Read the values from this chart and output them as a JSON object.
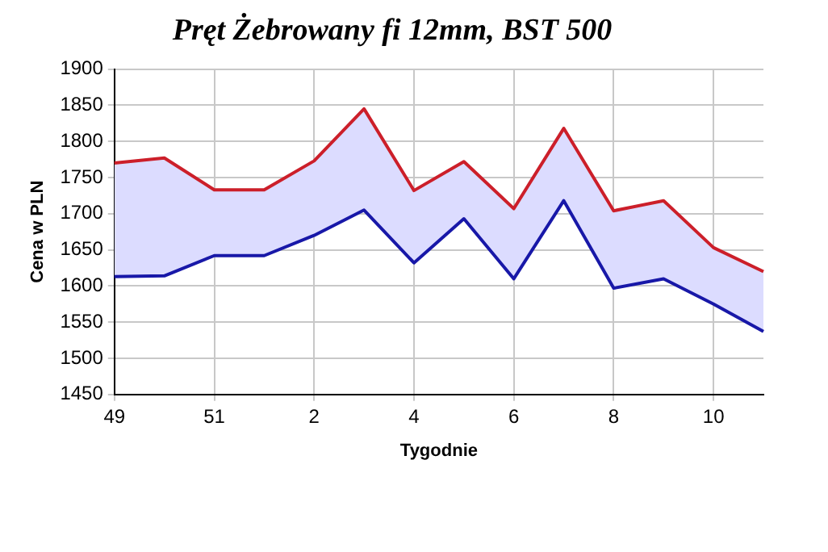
{
  "chart_data": {
    "type": "line",
    "title": "Pręt Żebrowany fi 12mm, BST 500",
    "xlabel": "Tygodnie",
    "ylabel": "Cena w PLN",
    "categories": [
      "49",
      null,
      "51",
      null,
      "2",
      null,
      "4",
      null,
      "6",
      null,
      "8",
      null,
      "10",
      null
    ],
    "series": [
      {
        "color": "#cc1f2a",
        "values": [
          1770,
          1777,
          1733,
          1733,
          1773,
          1845,
          1732,
          1772,
          1707,
          1818,
          1704,
          1718,
          1653,
          1620
        ],
        "upper": [
          1770,
          1777,
          1733,
          1733,
          1773,
          1845,
          1732,
          1772,
          1707,
          1818,
          1704,
          1718,
          1653,
          1620
        ],
        "lower": [
          1613,
          1614,
          1642,
          1642,
          1670,
          1705,
          1632,
          1693,
          1610,
          1718,
          1597,
          1610,
          1575,
          1537
        ]
      },
      {
        "color": "#1818a8",
        "values": [
          1613,
          1614,
          1642,
          1642,
          1670,
          1705,
          1632,
          1693,
          1610,
          1718,
          1597,
          1610,
          1575,
          1537
        ]
      }
    ],
    "ylim": [
      1450,
      1900
    ],
    "yticks": [
      1450,
      1500,
      1550,
      1600,
      1650,
      1700,
      1750,
      1800,
      1850,
      1900
    ],
    "grid": true,
    "legend": false,
    "marker": "none",
    "line_style": "solid"
  }
}
